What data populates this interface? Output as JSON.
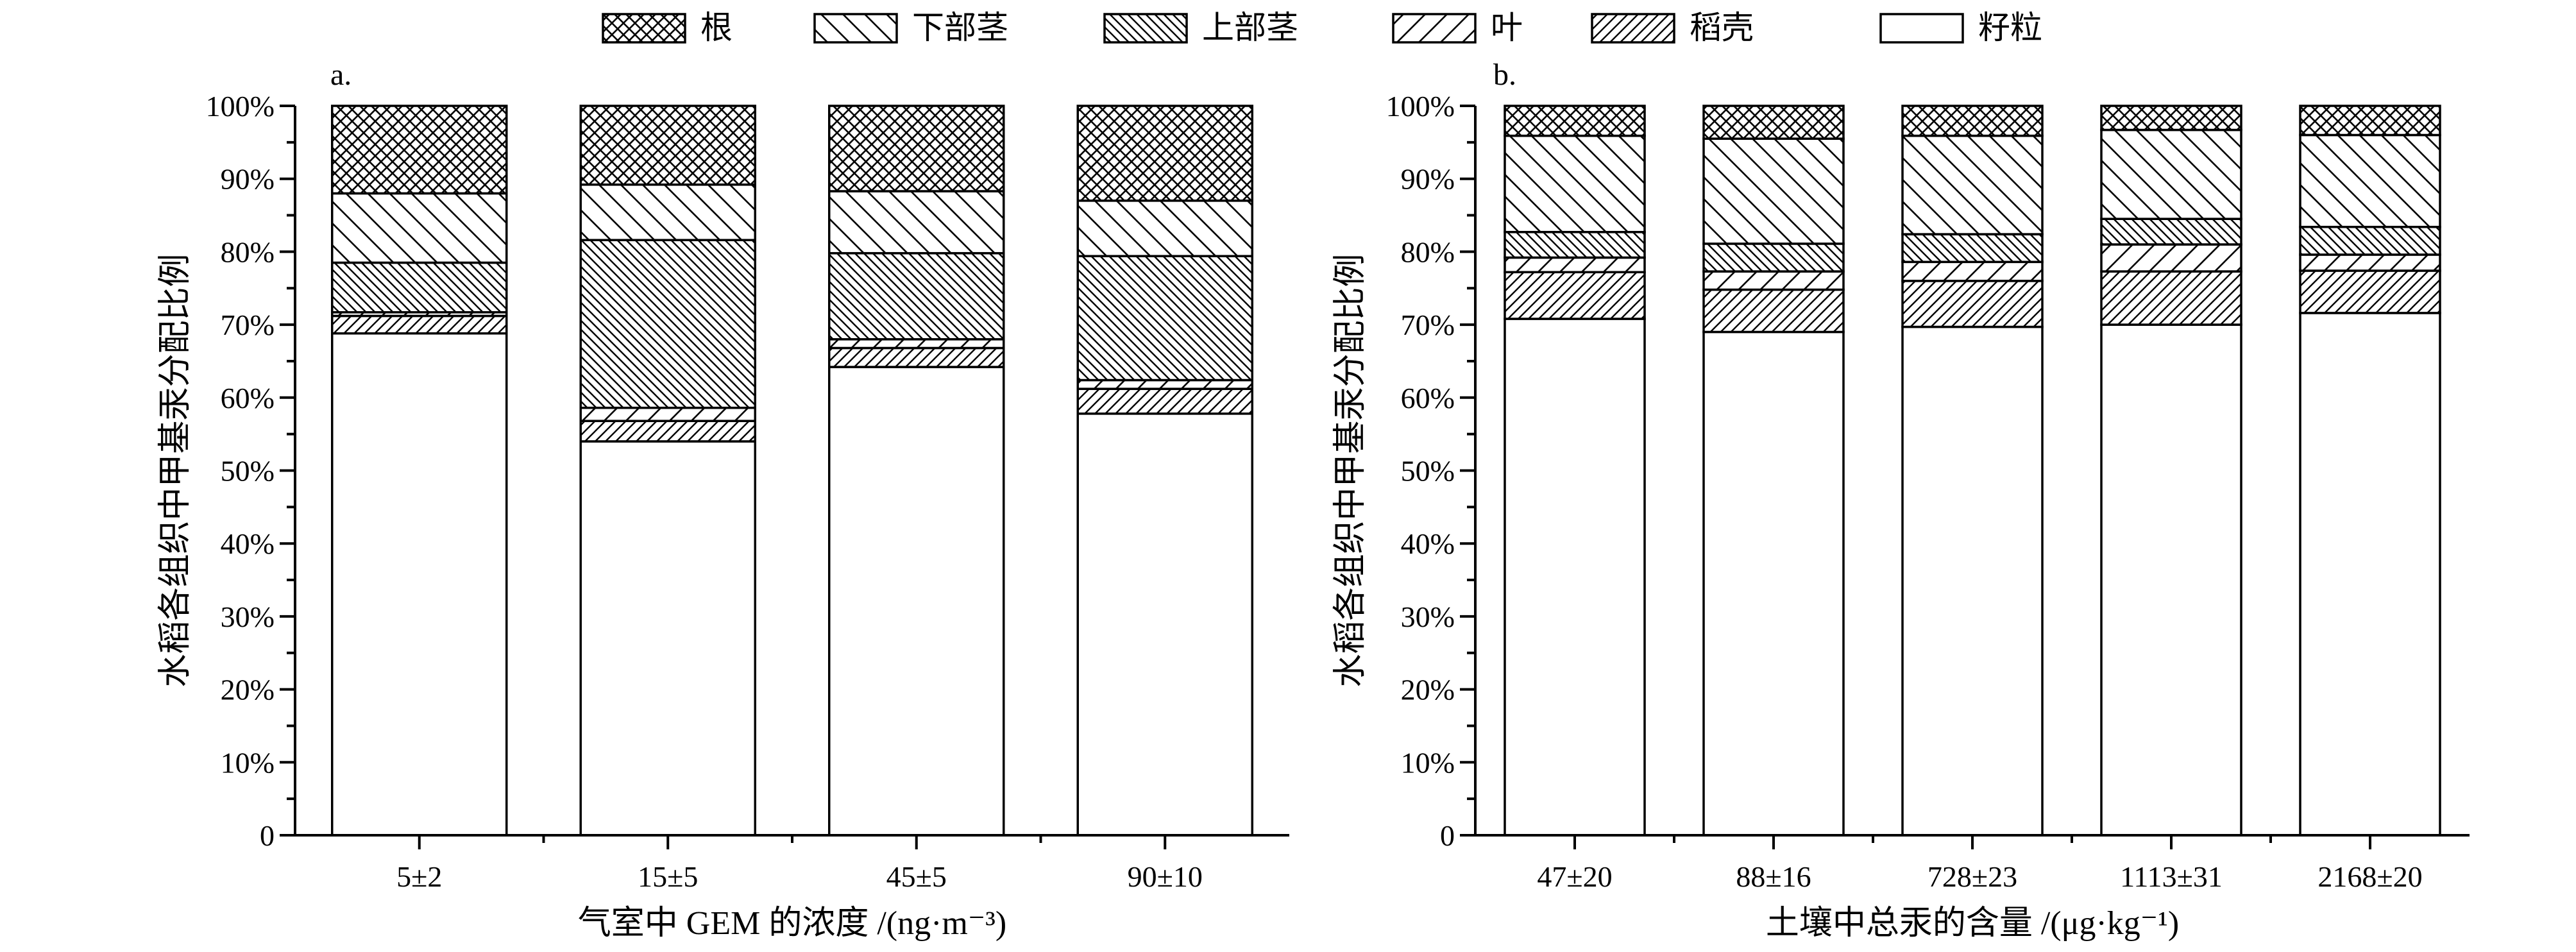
{
  "chart_data": {
    "type": "stacked-bar",
    "stack_order": [
      "籽粒",
      "稻壳",
      "叶",
      "上部茎",
      "下部茎",
      "根"
    ],
    "legend": [
      {
        "name": "根",
        "pattern": "crosshatch"
      },
      {
        "name": "下部茎",
        "pattern": "sparse-back-diagonal"
      },
      {
        "name": "上部茎",
        "pattern": "dense-back-diagonal"
      },
      {
        "name": "叶",
        "pattern": "sparse-forward-diagonal"
      },
      {
        "name": "稻壳",
        "pattern": "dense-forward-diagonal"
      },
      {
        "name": "籽粒",
        "pattern": "solid-white"
      }
    ],
    "legend_placement": "top",
    "panels": [
      {
        "label": "a.",
        "xlabel": "气室中 GEM 的浓度 /(ng·m⁻³)",
        "ylabel": "水稻各组织中甲基汞分配比例",
        "ylim": [
          0,
          100
        ],
        "yticks": [
          "0",
          "10%",
          "20%",
          "30%",
          "40%",
          "50%",
          "60%",
          "70%",
          "80%",
          "90%",
          "100%"
        ],
        "categories": [
          "5±2",
          "15±5",
          "45±5",
          "90±10"
        ],
        "series": [
          {
            "name": "籽粒",
            "values": [
              68.8,
              54.0,
              64.2,
              57.8
            ]
          },
          {
            "name": "稻壳",
            "values": [
              2.4,
              2.8,
              2.6,
              3.4
            ]
          },
          {
            "name": "叶",
            "values": [
              0.5,
              1.8,
              1.2,
              1.2
            ]
          },
          {
            "name": "上部茎",
            "values": [
              6.8,
              23.0,
              11.8,
              17.0
            ]
          },
          {
            "name": "下部茎",
            "values": [
              9.5,
              7.6,
              8.5,
              7.6
            ]
          },
          {
            "name": "根",
            "values": [
              12.0,
              10.8,
              11.7,
              13.0
            ]
          }
        ]
      },
      {
        "label": "b.",
        "xlabel": "土壤中总汞的含量 /(μg·kg⁻¹)",
        "ylabel": "水稻各组织中甲基汞分配比例",
        "ylim": [
          0,
          100
        ],
        "yticks": [
          "0",
          "10%",
          "20%",
          "30%",
          "40%",
          "50%",
          "60%",
          "70%",
          "80%",
          "90%",
          "100%"
        ],
        "categories": [
          "47±20",
          "88±16",
          "728±23",
          "1113±31",
          "2168±20"
        ],
        "series": [
          {
            "name": "籽粒",
            "values": [
              70.8,
              69.0,
              69.7,
              70.0,
              71.6
            ]
          },
          {
            "name": "稻壳",
            "values": [
              6.4,
              5.8,
              6.3,
              7.3,
              5.8
            ]
          },
          {
            "name": "叶",
            "values": [
              2.0,
              2.5,
              2.6,
              3.7,
              2.2
            ]
          },
          {
            "name": "上部茎",
            "values": [
              3.5,
              3.8,
              3.8,
              3.5,
              3.8
            ]
          },
          {
            "name": "下部茎",
            "values": [
              13.2,
              14.4,
              13.5,
              12.2,
              12.6
            ]
          },
          {
            "name": "根",
            "values": [
              4.1,
              4.5,
              4.1,
              3.3,
              4.0
            ]
          }
        ]
      }
    ]
  }
}
